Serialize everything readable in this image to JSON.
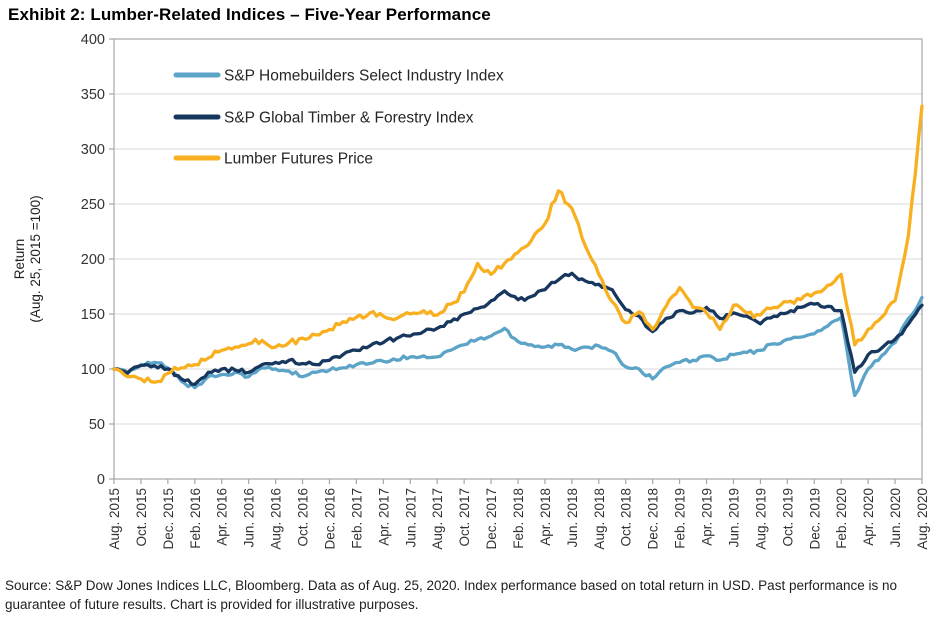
{
  "title": "Exhibit 2: Lumber-Related Indices – Five-Year Performance",
  "source_note": "Source: S&P Dow Jones Indices LLC, Bloomberg. Data as of Aug. 25, 2020. Index performance based on total return in USD. Past performance is no guarantee of future results. Chart is provided for illustrative purposes.",
  "colors": {
    "homebuilders": "#5BA3C7",
    "timber": "#17375E",
    "lumber": "#F8AF20",
    "gridline": "#D9D9D9",
    "axis_border": "#A6A6A6",
    "tick_text": "#333333"
  },
  "chart_data": {
    "type": "line",
    "title": "Exhibit 2: Lumber-Related Indices – Five-Year Performance",
    "ylabel": "Return (Aug. 25, 2015 =100)",
    "ylabel_line1": "Return",
    "ylabel_line2": "(Aug. 25, 2015 =100)",
    "ylim": [
      0,
      400
    ],
    "yticks": [
      0,
      50,
      100,
      150,
      200,
      250,
      300,
      350,
      400
    ],
    "grid": "horizontal",
    "legend_position": "inside-top-left",
    "x_unit": "monthly points, Aug. 25 2015 through Aug. 25 2020",
    "months_per_xtick": 2,
    "xtick_labels": [
      "Aug. 2015",
      "Oct. 2015",
      "Dec. 2015",
      "Feb. 2016",
      "Apr. 2016",
      "Jun. 2016",
      "Aug. 2016",
      "Oct. 2016",
      "Dec. 2016",
      "Feb. 2017",
      "Apr. 2017",
      "Jun. 2017",
      "Aug. 2017",
      "Oct. 2017",
      "Dec. 2017",
      "Feb. 2018",
      "Apr. 2018",
      "Jun. 2018",
      "Aug. 2018",
      "Oct. 2018",
      "Dec. 2018",
      "Feb. 2019",
      "Apr. 2019",
      "Jun. 2019",
      "Aug. 2019",
      "Oct. 2019",
      "Dec. 2019",
      "Feb. 2020",
      "Apr. 2020",
      "Jun. 2020",
      "Aug. 2020"
    ],
    "series": [
      {
        "name": "S&P Homebuilders Select Industry Index",
        "color": "#5BA3C7",
        "values": [
          100,
          97,
          104,
          106,
          101,
          89,
          83,
          93,
          95,
          97,
          93,
          101,
          100,
          98,
          93,
          97,
          99,
          101,
          104,
          105,
          107,
          108,
          111,
          112,
          111,
          117,
          122,
          127,
          130,
          137,
          125,
          122,
          120,
          122,
          118,
          120,
          121,
          116,
          102,
          100,
          91,
          102,
          106,
          108,
          112,
          108,
          113,
          115,
          117,
          123,
          127,
          129,
          132,
          139,
          147,
          76,
          100,
          112,
          124,
          146,
          165
        ]
      },
      {
        "name": "S&P Global Timber & Forestry Index",
        "color": "#17375E",
        "values": [
          100,
          96,
          103,
          103,
          100,
          91,
          86,
          97,
          100,
          99,
          97,
          104,
          106,
          108,
          105,
          104,
          108,
          113,
          117,
          121,
          124,
          128,
          130,
          134,
          137,
          143,
          150,
          155,
          162,
          171,
          163,
          166,
          172,
          181,
          187,
          180,
          177,
          172,
          154,
          148,
          134,
          146,
          153,
          151,
          156,
          146,
          151,
          148,
          141,
          148,
          151,
          156,
          159,
          157,
          153,
          97,
          113,
          119,
          127,
          141,
          158
        ]
      },
      {
        "name": "Lumber Futures Price",
        "color": "#F8AF20",
        "values": [
          100,
          93,
          91,
          88,
          96,
          101,
          104,
          110,
          117,
          120,
          123,
          126,
          120,
          124,
          128,
          131,
          136,
          143,
          147,
          151,
          148,
          146,
          150,
          153,
          149,
          159,
          170,
          196,
          186,
          196,
          206,
          217,
          232,
          262,
          246,
          212,
          186,
          161,
          142,
          152,
          136,
          157,
          174,
          156,
          151,
          136,
          158,
          151,
          149,
          156,
          161,
          163,
          169,
          176,
          186,
          122,
          136,
          147,
          162,
          222,
          339
        ]
      }
    ]
  }
}
